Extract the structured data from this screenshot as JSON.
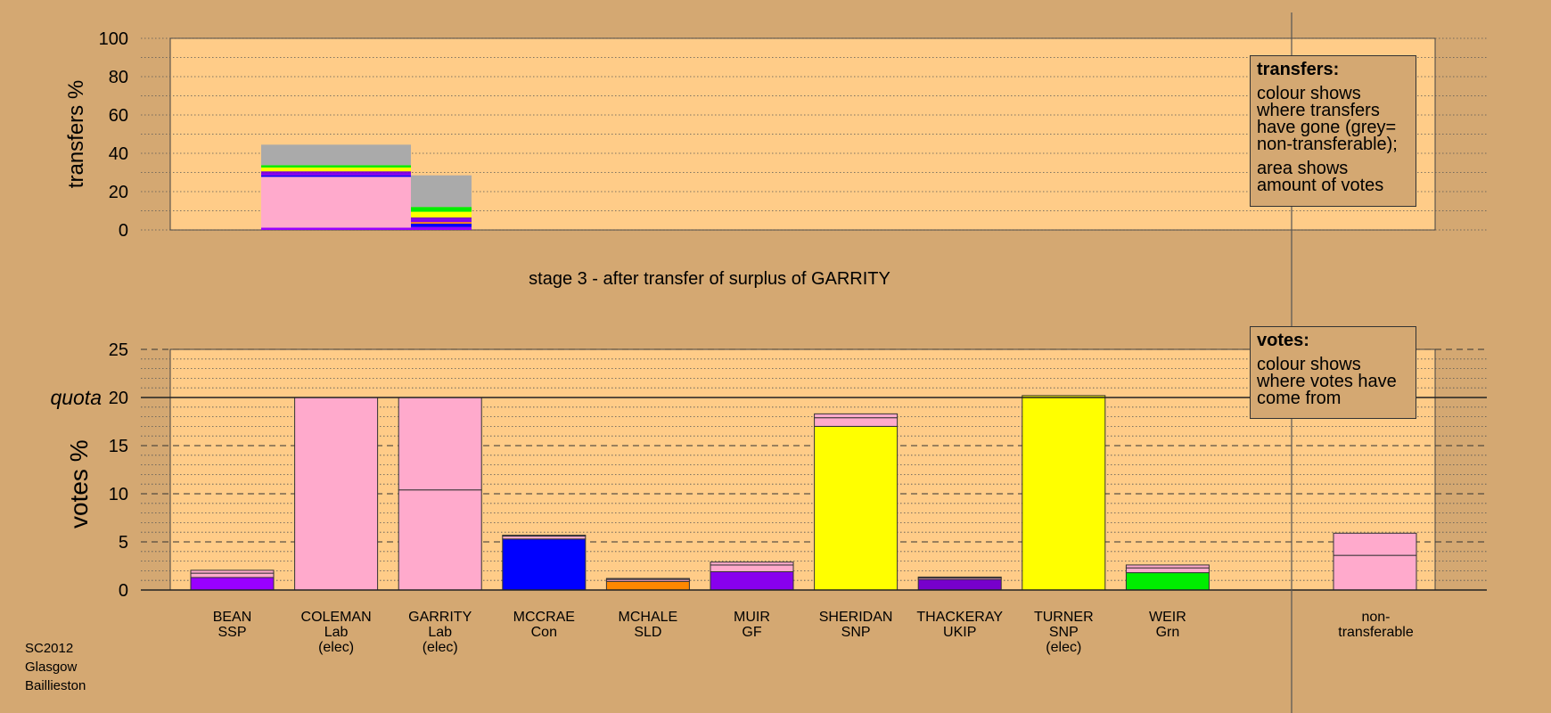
{
  "colors": {
    "background": "#d4a872",
    "plot_area": "#ffcc88",
    "SSP": "#9900ff",
    "Lab": "#ffaacc",
    "Con": "#0000ff",
    "SLD": "#ff8800",
    "GF": "#8800ee",
    "SNP": "#ffff00",
    "UKIP": "#7700cc",
    "Grn": "#00ee00",
    "non-transferable": "#aaaaaa"
  },
  "transfers_legend": {
    "title": "transfers:",
    "line1": "colour shows where transfers have gone (grey= non-transferable);",
    "line2": "area shows amount of votes"
  },
  "votes_legend": {
    "title": "votes:",
    "line1": "colour shows where votes have come from"
  },
  "footer": {
    "line1": "SC2012",
    "line2": "Glasgow",
    "line3": "Baillieston"
  },
  "chart_data": [
    {
      "type": "bar",
      "subtype": "stacked",
      "title": "stage 3 - after transfer of surplus of GARRITY",
      "ylabel": "transfers %",
      "ylim": [
        0,
        100
      ],
      "yticks": [
        0,
        20,
        40,
        60,
        80,
        100
      ],
      "grid": true,
      "legend": "top-right",
      "bars": [
        {
          "source": "COLEMAN",
          "segments": [
            {
              "to": "BEAN",
              "value": 1.2,
              "color": "#9900ff"
            },
            {
              "to": "GARRITY",
              "value": 26.5,
              "color": "#ffaacc"
            },
            {
              "to": "MCCRAE",
              "value": 0.8,
              "color": "#0000ff"
            },
            {
              "to": "MUIR",
              "value": 1.3,
              "color": "#8800ee"
            },
            {
              "to": "THACKERAY",
              "value": 0.8,
              "color": "#7700cc"
            },
            {
              "to": "SHERIDAN",
              "value": 2.0,
              "color": "#ffff00"
            },
            {
              "to": "WEIR",
              "value": 1.2,
              "color": "#00ee00"
            },
            {
              "to": "non-transferable",
              "value": 10.7,
              "color": "#aaaaaa"
            }
          ]
        },
        {
          "source": "GARRITY",
          "segments": [
            {
              "to": "BEAN",
              "value": 1.5,
              "color": "#9900ff"
            },
            {
              "to": "MCCRAE",
              "value": 1.8,
              "color": "#0000ff"
            },
            {
              "to": "MCHALE",
              "value": 0.8,
              "color": "#ff8800"
            },
            {
              "to": "MUIR",
              "value": 1.6,
              "color": "#8800ee"
            },
            {
              "to": "THACKERAY",
              "value": 0.8,
              "color": "#7700cc"
            },
            {
              "to": "SHERIDAN",
              "value": 3.0,
              "color": "#ffff00"
            },
            {
              "to": "WEIR",
              "value": 2.5,
              "color": "#00ee00"
            },
            {
              "to": "non-transferable",
              "value": 16.5,
              "color": "#aaaaaa"
            }
          ]
        }
      ]
    },
    {
      "type": "bar",
      "subtype": "stacked",
      "ylabel": "votes %",
      "ylim": [
        0,
        25
      ],
      "yticks": [
        0,
        5,
        10,
        15,
        20,
        25
      ],
      "quota": 20,
      "quota_label": "quota",
      "grid": true,
      "legend": "top-right",
      "candidates": [
        {
          "name": "BEAN",
          "party": "SSP",
          "elected": "",
          "segments": [
            {
              "from": "BEAN",
              "value": 1.3,
              "color": "#9900ff"
            },
            {
              "from": "COLEMAN",
              "value": 0.45,
              "color": "#ffaacc"
            },
            {
              "from": "GARRITY",
              "value": 0.3,
              "color": "#ffaacc"
            }
          ]
        },
        {
          "name": "COLEMAN",
          "party": "Lab",
          "elected": "(elec)",
          "segments": [
            {
              "from": "COLEMAN",
              "value": 20.0,
              "color": "#ffaacc"
            }
          ]
        },
        {
          "name": "GARRITY",
          "party": "Lab",
          "elected": "(elec)",
          "segments": [
            {
              "from": "GARRITY",
              "value": 10.4,
              "color": "#ffaacc"
            },
            {
              "from": "COLEMAN",
              "value": 9.6,
              "color": "#ffaacc"
            }
          ]
        },
        {
          "name": "MCCRAE",
          "party": "Con",
          "elected": "",
          "segments": [
            {
              "from": "MCCRAE",
              "value": 5.3,
              "color": "#0000ff"
            },
            {
              "from": "COLEMAN",
              "value": 0.3,
              "color": "#ffaacc"
            },
            {
              "from": "GARRITY",
              "value": 0.1,
              "color": "#ffaacc"
            }
          ]
        },
        {
          "name": "MCHALE",
          "party": "SLD",
          "elected": "",
          "segments": [
            {
              "from": "MCHALE",
              "value": 0.9,
              "color": "#ff8800"
            },
            {
              "from": "COLEMAN",
              "value": 0.2,
              "color": "#ffaacc"
            },
            {
              "from": "GARRITY",
              "value": 0.1,
              "color": "#ffaacc"
            }
          ]
        },
        {
          "name": "MUIR",
          "party": "GF",
          "elected": "",
          "segments": [
            {
              "from": "MUIR",
              "value": 1.9,
              "color": "#8800ee"
            },
            {
              "from": "COLEMAN",
              "value": 0.7,
              "color": "#ffaacc"
            },
            {
              "from": "GARRITY",
              "value": 0.3,
              "color": "#ffaacc"
            }
          ]
        },
        {
          "name": "SHERIDAN",
          "party": "SNP",
          "elected": "",
          "segments": [
            {
              "from": "SHERIDAN",
              "value": 17.0,
              "color": "#ffff00"
            },
            {
              "from": "COLEMAN",
              "value": 0.9,
              "color": "#ffaacc"
            },
            {
              "from": "GARRITY",
              "value": 0.4,
              "color": "#ffaacc"
            }
          ]
        },
        {
          "name": "THACKERAY",
          "party": "UKIP",
          "elected": "",
          "segments": [
            {
              "from": "THACKERAY",
              "value": 1.1,
              "color": "#7700cc"
            },
            {
              "from": "COLEMAN",
              "value": 0.15,
              "color": "#ffaacc"
            },
            {
              "from": "GARRITY",
              "value": 0.1,
              "color": "#ffaacc"
            }
          ]
        },
        {
          "name": "TURNER",
          "party": "SNP",
          "elected": "(elec)",
          "segments": [
            {
              "from": "TURNER",
              "value": 20.2,
              "color": "#ffff00"
            }
          ]
        },
        {
          "name": "WEIR",
          "party": "Grn",
          "elected": "",
          "segments": [
            {
              "from": "WEIR",
              "value": 1.8,
              "color": "#00ee00"
            },
            {
              "from": "COLEMAN",
              "value": 0.5,
              "color": "#ffaacc"
            },
            {
              "from": "GARRITY",
              "value": 0.3,
              "color": "#ffaacc"
            }
          ]
        }
      ],
      "non_transferable": {
        "label_line1": "non-",
        "label_line2": "transferable",
        "segments": [
          {
            "from": "COLEMAN",
            "value": 3.6,
            "color": "#ffaacc"
          },
          {
            "from": "GARRITY",
            "value": 2.3,
            "color": "#ffaacc"
          }
        ]
      }
    }
  ]
}
